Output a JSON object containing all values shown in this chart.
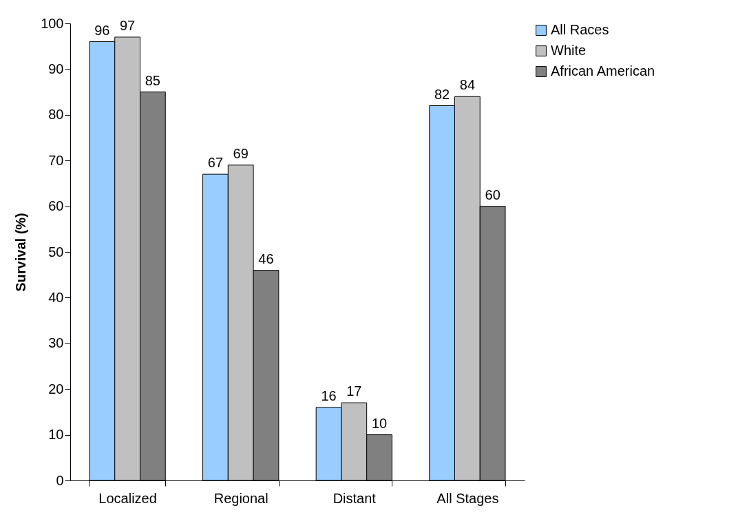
{
  "chart_data": {
    "type": "bar",
    "ylabel": "Survival (%)",
    "categories": [
      "Localized",
      "Regional",
      "Distant",
      "All Stages"
    ],
    "series": [
      {
        "name": "All Races",
        "color": "#99ccff",
        "values": [
          96,
          67,
          16,
          82
        ]
      },
      {
        "name": "White",
        "color": "#c0c0c0",
        "values": [
          97,
          69,
          17,
          84
        ]
      },
      {
        "name": "African American",
        "color": "#808080",
        "values": [
          85,
          46,
          10,
          60
        ]
      }
    ],
    "ylim": [
      0,
      100
    ],
    "yticks": [
      0,
      10,
      20,
      30,
      40,
      50,
      60,
      70,
      80,
      90,
      100
    ],
    "data_labels": true,
    "legend": "right",
    "grid": false
  }
}
